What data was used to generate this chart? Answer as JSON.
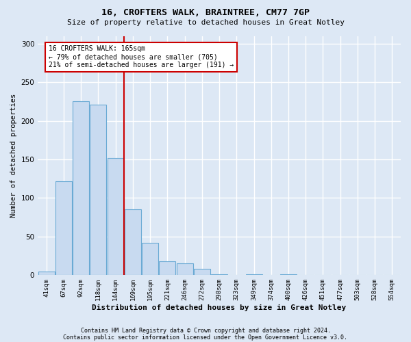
{
  "title1": "16, CROFTERS WALK, BRAINTREE, CM77 7GP",
  "title2": "Size of property relative to detached houses in Great Notley",
  "xlabel": "Distribution of detached houses by size in Great Notley",
  "ylabel": "Number of detached properties",
  "bin_labels": [
    "41sqm",
    "67sqm",
    "92sqm",
    "118sqm",
    "144sqm",
    "169sqm",
    "195sqm",
    "221sqm",
    "246sqm",
    "272sqm",
    "298sqm",
    "323sqm",
    "349sqm",
    "374sqm",
    "400sqm",
    "426sqm",
    "451sqm",
    "477sqm",
    "503sqm",
    "528sqm",
    "554sqm"
  ],
  "bar_values": [
    5,
    122,
    225,
    221,
    152,
    85,
    42,
    18,
    15,
    8,
    1,
    0,
    1,
    0,
    1,
    0,
    0,
    0,
    0,
    0,
    0
  ],
  "bar_color": "#c8daf0",
  "bar_edgecolor": "#6aaad4",
  "vline_index": 5,
  "vline_color": "#cc0000",
  "annotation_line1": "16 CROFTERS WALK: 165sqm",
  "annotation_line2": "← 79% of detached houses are smaller (705)",
  "annotation_line3": "21% of semi-detached houses are larger (191) →",
  "annotation_box_color": "#ffffff",
  "annotation_box_edgecolor": "#cc0000",
  "ylim": [
    0,
    310
  ],
  "yticks": [
    0,
    50,
    100,
    150,
    200,
    250,
    300
  ],
  "footer1": "Contains HM Land Registry data © Crown copyright and database right 2024.",
  "footer2": "Contains public sector information licensed under the Open Government Licence v3.0.",
  "background_color": "#dde8f5",
  "plot_background": "#dde8f5",
  "grid_color": "#ffffff"
}
